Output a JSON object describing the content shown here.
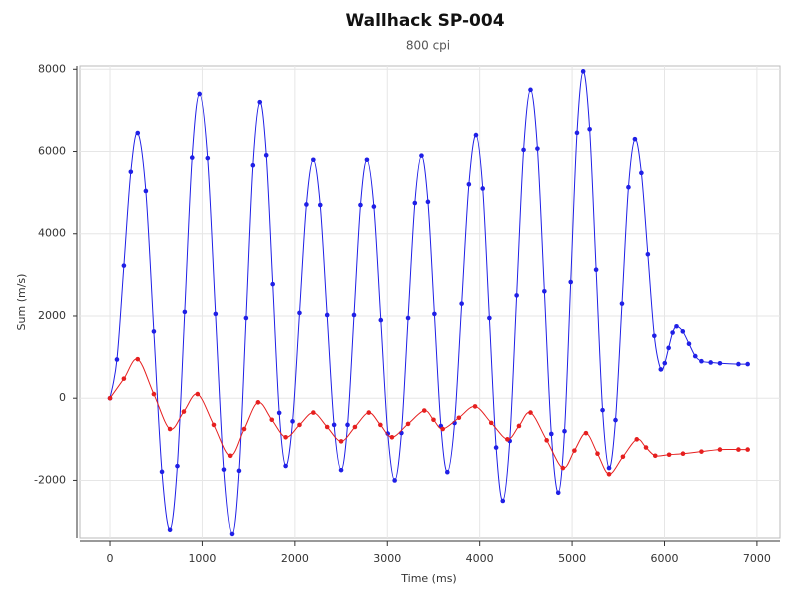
{
  "chart_data": {
    "type": "line",
    "title": "Wallhack SP-004",
    "subtitle": "800 cpi",
    "x_label": "Time (ms)",
    "y_label": "Sum (m/s)",
    "xlim": [
      -325,
      7250
    ],
    "ylim": [
      -3400,
      8080
    ],
    "xticks": [
      0,
      1000,
      2000,
      3000,
      4000,
      5000,
      6000,
      7000
    ],
    "yticks": [
      -2000,
      0,
      2000,
      4000,
      6000,
      8000
    ],
    "grid": true,
    "series": [
      {
        "color": "#1f1fe6",
        "x": [
          0,
          75,
          150,
          225,
          300,
          388,
          475,
          563,
          650,
          730,
          810,
          890,
          970,
          1058,
          1145,
          1233,
          1320,
          1395,
          1470,
          1545,
          1620,
          1690,
          1760,
          1830,
          1900,
          1975,
          2050,
          2125,
          2200,
          2275,
          2350,
          2425,
          2500,
          2570,
          2640,
          2710,
          2780,
          2855,
          2930,
          3005,
          3080,
          3153,
          3225,
          3298,
          3370,
          3440,
          3510,
          3580,
          3650,
          3728,
          3805,
          3883,
          3960,
          4033,
          4105,
          4178,
          4250,
          4325,
          4400,
          4475,
          4550,
          4625,
          4700,
          4775,
          4850,
          4918,
          4985,
          5053,
          5120,
          5190,
          5260,
          5330,
          5400,
          5470,
          5540,
          5610,
          5680,
          5750,
          5820,
          5890,
          5960,
          6003,
          6045,
          6088,
          6130,
          6198,
          6265,
          6333,
          6400,
          6500,
          6600,
          6800,
          6900
        ],
        "values": [
          0,
          942,
          3225,
          5508,
          6450,
          5041,
          1625,
          -1791,
          -3200,
          -1652,
          2100,
          5852,
          7400,
          5838,
          2050,
          -1738,
          -3300,
          -1767,
          1950,
          5667,
          7200,
          5908,
          2775,
          -358,
          -1650,
          -562,
          2075,
          4712,
          5800,
          4698,
          2025,
          -648,
          -1750,
          -648,
          2025,
          4698,
          5800,
          4661,
          1900,
          -861,
          -2000,
          -847,
          1950,
          4747,
          5900,
          4776,
          2050,
          -676,
          -1800,
          -603,
          2300,
          5203,
          6400,
          5101,
          1950,
          -1201,
          -2500,
          -1040,
          2500,
          6040,
          7500,
          6069,
          2600,
          -869,
          -2300,
          -803,
          2825,
          6454,
          7950,
          6541,
          3125,
          -291,
          -1700,
          -532,
          2300,
          5132,
          6300,
          5482,
          3500,
          1518,
          700,
          853,
          1225,
          1597,
          1750,
          1626,
          1325,
          1024,
          900,
          870,
          850,
          830,
          830
        ]
      },
      {
        "color": "#e61f1f",
        "x": [
          0,
          150,
          300,
          475,
          650,
          800,
          950,
          1125,
          1300,
          1450,
          1600,
          1750,
          1900,
          2050,
          2200,
          2350,
          2500,
          2650,
          2800,
          2925,
          3050,
          3225,
          3400,
          3500,
          3600,
          3775,
          3950,
          4125,
          4300,
          4425,
          4550,
          4725,
          4900,
          5025,
          5150,
          5275,
          5400,
          5550,
          5700,
          5800,
          5900,
          6050,
          6200,
          6400,
          6600,
          6800,
          6900
        ],
        "values": [
          0,
          475,
          950,
          100,
          -750,
          -325,
          100,
          -650,
          -1400,
          -750,
          -100,
          -525,
          -950,
          -650,
          -350,
          -700,
          -1050,
          -700,
          -350,
          -650,
          -950,
          -625,
          -300,
          -525,
          -750,
          -475,
          -200,
          -600,
          -1000,
          -675,
          -350,
          -1025,
          -1700,
          -1275,
          -850,
          -1350,
          -1850,
          -1425,
          -1000,
          -1200,
          -1400,
          -1375,
          -1350,
          -1300,
          -1250,
          -1250,
          -1250
        ]
      }
    ]
  }
}
